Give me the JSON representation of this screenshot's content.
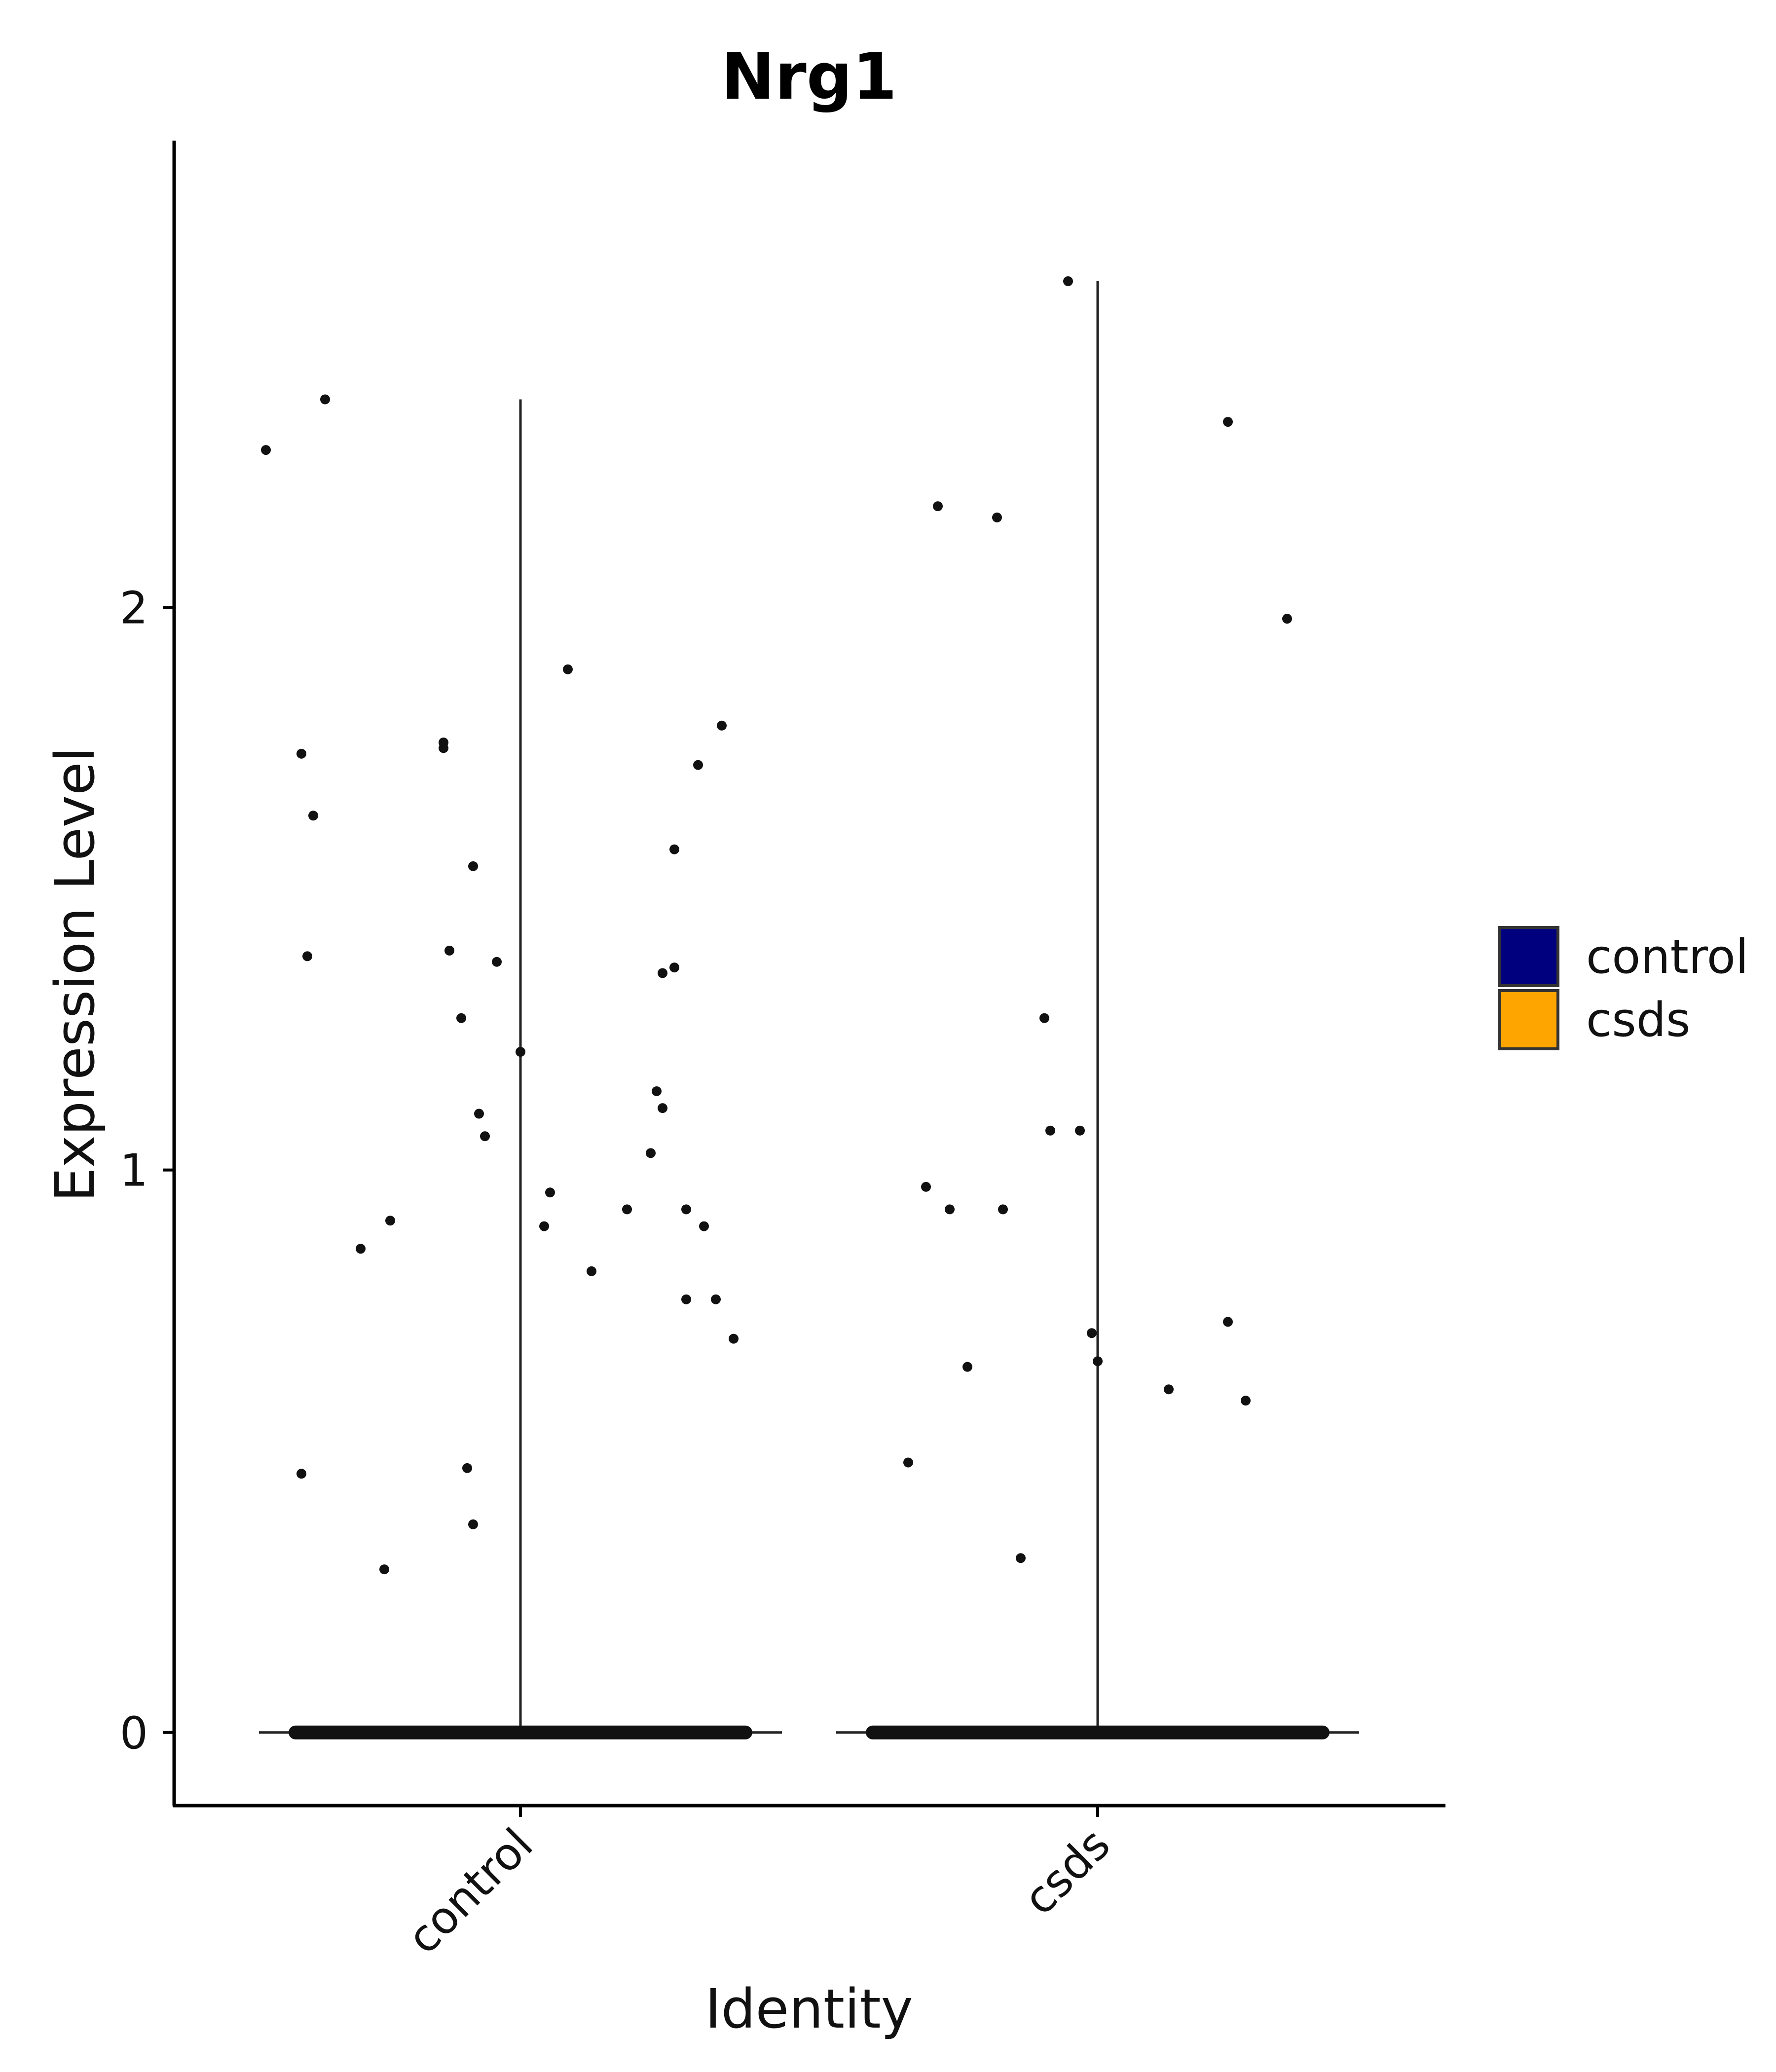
{
  "chart_data": {
    "type": "scatter",
    "title": "Nrg1",
    "xlabel": "Identity",
    "ylabel": "Expression Level",
    "ylim": [
      -0.13,
      2.83
    ],
    "yticks": [
      0,
      1,
      2
    ],
    "categories": [
      "control",
      "csds"
    ],
    "legend": {
      "placement": "right",
      "entries": [
        {
          "label": "control",
          "color": "#00007F"
        },
        {
          "label": "csds",
          "color": "#FFA500"
        }
      ]
    },
    "series": [
      {
        "name": "control",
        "color": "#00007F",
        "max": 2.37,
        "jitter": [
          -0.33,
          -0.43,
          0.08,
          -0.13,
          -0.13,
          0.34,
          -0.37,
          -0.35,
          0.26,
          0.3,
          -0.08,
          -0.12,
          -0.36,
          0.26,
          0.24,
          -0.1,
          -0.04,
          0.0,
          0.23,
          0.24,
          -0.07,
          -0.06,
          0.22,
          0.05,
          0.18,
          0.04,
          -0.22,
          -0.27,
          0.33,
          0.36,
          0.12,
          0.28,
          0.28,
          0.31,
          -0.37,
          -0.09,
          -0.08,
          -0.23
        ],
        "points": [
          2.37,
          2.28,
          1.89,
          1.76,
          1.75,
          1.79,
          1.74,
          1.63,
          1.57,
          1.72,
          1.54,
          1.39,
          1.38,
          1.36,
          1.35,
          1.27,
          1.37,
          1.21,
          1.14,
          1.11,
          1.1,
          1.06,
          1.03,
          0.96,
          0.93,
          0.9,
          0.91,
          0.86,
          0.77,
          0.7,
          0.82,
          0.77,
          0.93,
          0.9,
          0.46,
          0.47,
          0.37,
          0.29
        ]
      },
      {
        "name": "csds",
        "color": "#FFA500",
        "max": 2.58,
        "jitter": [
          -0.05,
          0.22,
          -0.27,
          -0.17,
          0.32,
          -0.09,
          -0.08,
          -0.29,
          -0.03,
          -0.25,
          -0.16,
          -0.01,
          0.12,
          0.22,
          0.25,
          -0.22,
          -0.32,
          0.0,
          -0.13,
          0.0
        ],
        "points": [
          2.58,
          2.33,
          2.18,
          2.16,
          1.98,
          1.27,
          1.07,
          0.97,
          1.07,
          0.93,
          0.93,
          0.71,
          0.61,
          0.73,
          0.59,
          0.65,
          0.48,
          0.66,
          0.31,
          0.0
        ]
      }
    ]
  }
}
